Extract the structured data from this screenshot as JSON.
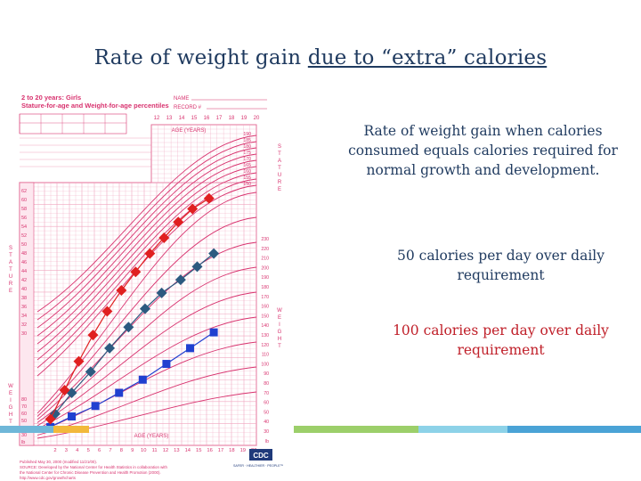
{
  "slide": {
    "title_prefix": "Rate of weight gain ",
    "title_underlined": "due to “extra” calories"
  },
  "labels": {
    "normal": "Rate of weight gain when calories consumed equals calories required for normal growth and development.",
    "plus50": "50 calories per day over daily requirement",
    "plus100": "100 calories per day over daily requirement"
  },
  "growth_chart": {
    "heading_line1": "2 to 20 years: Girls",
    "heading_line2": "Stature-for-age and Weight-for-age percentiles",
    "name_label": "NAME",
    "record_label": "RECORD #",
    "age_axis_title": "AGE (YEARS)",
    "top_ages": [
      "12",
      "13",
      "14",
      "15",
      "16",
      "17",
      "18",
      "19",
      "20"
    ],
    "bottom_ages": [
      "2",
      "3",
      "4",
      "5",
      "6",
      "7",
      "8",
      "9",
      "10",
      "11",
      "12",
      "13",
      "14",
      "15",
      "16",
      "17",
      "18",
      "19",
      "20"
    ],
    "left_axis_in": [
      "62",
      "60",
      "58",
      "56",
      "54",
      "52",
      "50",
      "48",
      "46",
      "44",
      "42",
      "40",
      "38",
      "36",
      "34",
      "32",
      "30"
    ],
    "left_weight_lb": [
      "80",
      "70",
      "60",
      "50",
      "40",
      "30",
      "lb"
    ],
    "right_stature_cm": [
      "190",
      "185",
      "180",
      "175",
      "170",
      "165",
      "160",
      "155",
      "150"
    ],
    "right_weight_lb": [
      "230",
      "220",
      "210",
      "200",
      "190",
      "180",
      "170",
      "160",
      "150",
      "140",
      "130",
      "120",
      "110",
      "100",
      "90",
      "80",
      "70",
      "60",
      "50",
      "40",
      "30",
      "lb"
    ],
    "side_stature": "S T A T U R E",
    "side_weight": "W E I G H T",
    "footer_published": "Published May 30, 2000 (modified 11/21/00).",
    "footer_source": "SOURCE: Developed by the National Center for Health Statistics in collaboration with",
    "footer_source2": "the National Center for Chronic Disease Prevention and Health Promotion (2000).",
    "footer_url": "http://www.cdc.gov/growthcharts",
    "cdc_logo": "CDC",
    "cdc_tagline": "SAFER · HEALTHIER · PEOPLE™"
  },
  "marker_series": {
    "normal_color": "#2040d0",
    "plus50_color": "#2c5a80",
    "plus100_color": "#e02020",
    "normal_path_fraction": [
      [
        0.13,
        0.93
      ],
      [
        0.22,
        0.89
      ],
      [
        0.32,
        0.85
      ],
      [
        0.42,
        0.8
      ],
      [
        0.52,
        0.75
      ],
      [
        0.62,
        0.69
      ],
      [
        0.72,
        0.63
      ],
      [
        0.82,
        0.57
      ]
    ],
    "plus50_path_fraction": [
      [
        0.15,
        0.88
      ],
      [
        0.22,
        0.8
      ],
      [
        0.3,
        0.72
      ],
      [
        0.38,
        0.63
      ],
      [
        0.46,
        0.55
      ],
      [
        0.53,
        0.48
      ],
      [
        0.6,
        0.42
      ],
      [
        0.68,
        0.37
      ],
      [
        0.75,
        0.32
      ],
      [
        0.82,
        0.27
      ]
    ],
    "plus100_path_fraction": [
      [
        0.13,
        0.9
      ],
      [
        0.19,
        0.79
      ],
      [
        0.25,
        0.68
      ],
      [
        0.31,
        0.58
      ],
      [
        0.37,
        0.49
      ],
      [
        0.43,
        0.41
      ],
      [
        0.49,
        0.34
      ],
      [
        0.55,
        0.27
      ],
      [
        0.61,
        0.21
      ],
      [
        0.67,
        0.15
      ],
      [
        0.73,
        0.1
      ],
      [
        0.8,
        0.06
      ]
    ]
  },
  "colors": {
    "chart_pink": "#d8336f",
    "grid_pink": "#f0a6bf",
    "title_navy": "#1f3a5f",
    "label_red": "#c0202a"
  }
}
